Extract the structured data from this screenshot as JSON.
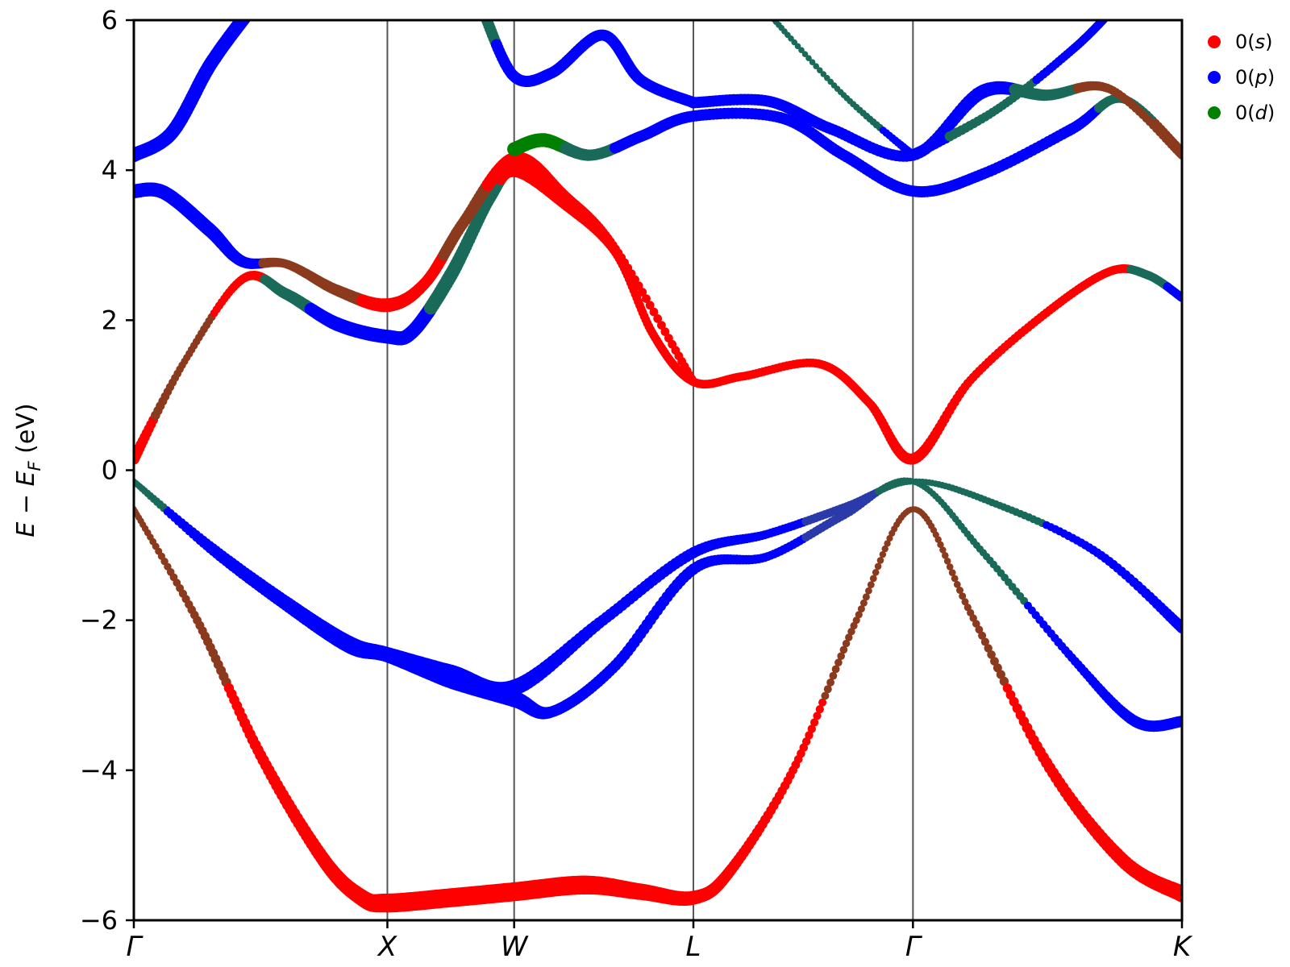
{
  "chart_data": {
    "type": "scatter",
    "title": "",
    "xlabel": "",
    "ylabel": "E − E_F (eV)",
    "ylabel_parts": {
      "main": "E − E",
      "sub": "F",
      "unit": " (eV)"
    },
    "ylim": [
      -6,
      6
    ],
    "yticks": [
      -6,
      -4,
      -2,
      0,
      2,
      4,
      6
    ],
    "ytick_labels": [
      "−6",
      "−4",
      "−2",
      "0",
      "2",
      "4",
      "6"
    ],
    "xlim": [
      0,
      4.134
    ],
    "kpoints": [
      {
        "label": "Γ",
        "x": 0
      },
      {
        "label": "X",
        "x": 1.0
      },
      {
        "label": "W",
        "x": 1.5
      },
      {
        "label": "L",
        "x": 2.207
      },
      {
        "label": "Γ",
        "x": 3.073
      },
      {
        "label": "K",
        "x": 4.134
      }
    ],
    "legend": {
      "placement": "top-right, outside",
      "entries": [
        {
          "label": "0(s)",
          "main": "0(",
          "ital": "s",
          "close": ")",
          "color": "#ff0000"
        },
        {
          "label": "0(p)",
          "main": "0(",
          "ital": "p",
          "close": ")",
          "color": "#0000ff"
        },
        {
          "label": "0(d)",
          "main": "0(",
          "ital": "d",
          "close": ")",
          "color": "#008000"
        }
      ]
    },
    "colors": {
      "s": "#ff0000",
      "p": "#0000ff",
      "d": "#008000",
      "mix_sd": "#8b3a1e",
      "mix_pd": "#1a6a5a",
      "mix_pdark": "#2a3aaa"
    },
    "bands": [
      {
        "name": "band-1",
        "points": [
          {
            "x": 0,
            "y": -0.52,
            "c": "mix_sd",
            "w": 1
          },
          {
            "x": 0.25,
            "y": -2.0,
            "c": "mix_sd",
            "w": 2
          },
          {
            "x": 0.5,
            "y": -3.8,
            "c": "s",
            "w": 3
          },
          {
            "x": 0.75,
            "y": -5.2,
            "c": "s",
            "w": 4
          },
          {
            "x": 0.9,
            "y": -5.7,
            "c": "s",
            "w": 5
          },
          {
            "x": 1.0,
            "y": -5.77,
            "c": "s",
            "w": 6
          },
          {
            "x": 1.25,
            "y": -5.7,
            "c": "s",
            "w": 6
          },
          {
            "x": 1.5,
            "y": -5.62,
            "c": "s",
            "w": 6
          },
          {
            "x": 1.78,
            "y": -5.53,
            "c": "s",
            "w": 6
          },
          {
            "x": 2.0,
            "y": -5.62,
            "c": "s",
            "w": 5
          },
          {
            "x": 2.207,
            "y": -5.7,
            "c": "s",
            "w": 4
          },
          {
            "x": 2.35,
            "y": -5.35,
            "c": "s",
            "w": 3
          },
          {
            "x": 2.6,
            "y": -4.0,
            "c": "s",
            "w": 2
          },
          {
            "x": 2.85,
            "y": -2.0,
            "c": "mix_sd",
            "w": 1.5
          },
          {
            "x": 3.073,
            "y": -0.52,
            "c": "mix_sd",
            "w": 1
          },
          {
            "x": 3.3,
            "y": -1.9,
            "c": "mix_sd",
            "w": 1.5
          },
          {
            "x": 3.6,
            "y": -3.9,
            "c": "s",
            "w": 3
          },
          {
            "x": 3.9,
            "y": -5.2,
            "c": "s",
            "w": 4
          },
          {
            "x": 4.134,
            "y": -5.65,
            "c": "s",
            "w": 5
          }
        ]
      },
      {
        "name": "band-2",
        "points": [
          {
            "x": 0,
            "y": -0.15,
            "c": "mix_pd",
            "w": 1
          },
          {
            "x": 0.3,
            "y": -1.0,
            "c": "p",
            "w": 2
          },
          {
            "x": 0.6,
            "y": -1.75,
            "c": "p",
            "w": 3
          },
          {
            "x": 0.85,
            "y": -2.3,
            "c": "p",
            "w": 4
          },
          {
            "x": 1.0,
            "y": -2.45,
            "c": "p",
            "w": 4
          },
          {
            "x": 1.25,
            "y": -2.7,
            "c": "p",
            "w": 5
          },
          {
            "x": 1.5,
            "y": -2.9,
            "c": "p",
            "w": 5
          },
          {
            "x": 1.85,
            "y": -2.0,
            "c": "p",
            "w": 3
          },
          {
            "x": 2.207,
            "y": -1.1,
            "c": "p",
            "w": 3
          },
          {
            "x": 2.5,
            "y": -0.85,
            "c": "p",
            "w": 2
          },
          {
            "x": 2.8,
            "y": -0.5,
            "c": "mix_pdark",
            "w": 2
          },
          {
            "x": 3.073,
            "y": -0.15,
            "c": "mix_pd",
            "w": 1
          },
          {
            "x": 3.4,
            "y": -0.45,
            "c": "mix_pd",
            "w": 1.5
          },
          {
            "x": 3.8,
            "y": -1.1,
            "c": "p",
            "w": 2
          },
          {
            "x": 4.134,
            "y": -2.1,
            "c": "p",
            "w": 3
          }
        ]
      },
      {
        "name": "band-3",
        "points": [
          {
            "x": 0,
            "y": -0.15,
            "c": "mix_pd",
            "w": 1
          },
          {
            "x": 0.3,
            "y": -1.05,
            "c": "p",
            "w": 2
          },
          {
            "x": 0.6,
            "y": -1.8,
            "c": "p",
            "w": 3
          },
          {
            "x": 0.85,
            "y": -2.35,
            "c": "p",
            "w": 4
          },
          {
            "x": 1.0,
            "y": -2.47,
            "c": "p",
            "w": 4
          },
          {
            "x": 1.25,
            "y": -2.8,
            "c": "p",
            "w": 5
          },
          {
            "x": 1.5,
            "y": -3.05,
            "c": "p",
            "w": 5
          },
          {
            "x": 1.65,
            "y": -3.22,
            "c": "p",
            "w": 3
          },
          {
            "x": 1.9,
            "y": -2.6,
            "c": "p",
            "w": 3
          },
          {
            "x": 2.207,
            "y": -1.32,
            "c": "p",
            "w": 3
          },
          {
            "x": 2.5,
            "y": -1.15,
            "c": "p",
            "w": 2
          },
          {
            "x": 2.8,
            "y": -0.6,
            "c": "mix_pdark",
            "w": 2
          },
          {
            "x": 3.073,
            "y": -0.15,
            "c": "mix_pd",
            "w": 1
          },
          {
            "x": 3.35,
            "y": -1.1,
            "c": "mix_pd",
            "w": 1.5
          },
          {
            "x": 3.7,
            "y": -2.5,
            "c": "p",
            "w": 2
          },
          {
            "x": 3.95,
            "y": -3.35,
            "c": "p",
            "w": 3
          },
          {
            "x": 4.134,
            "y": -3.35,
            "c": "p",
            "w": 3
          }
        ]
      },
      {
        "name": "band-4",
        "points": [
          {
            "x": 0,
            "y": 0.15,
            "c": "s",
            "w": 3
          },
          {
            "x": 0.2,
            "y": 1.45,
            "c": "mix_sd",
            "w": 1.5
          },
          {
            "x": 0.43,
            "y": 2.55,
            "c": "s",
            "w": 2
          },
          {
            "x": 0.6,
            "y": 2.35,
            "c": "mix_pd",
            "w": 3
          },
          {
            "x": 0.8,
            "y": 1.95,
            "c": "p",
            "w": 4
          },
          {
            "x": 1.0,
            "y": 1.78,
            "c": "p",
            "w": 4
          },
          {
            "x": 1.1,
            "y": 1.85,
            "c": "p",
            "w": 4
          },
          {
            "x": 1.25,
            "y": 2.6,
            "c": "mix_pd",
            "w": 4
          },
          {
            "x": 1.4,
            "y": 3.6,
            "c": "mix_pd",
            "w": 3
          },
          {
            "x": 1.5,
            "y": 4.0,
            "c": "s",
            "w": 4
          },
          {
            "x": 1.7,
            "y": 3.55,
            "c": "s",
            "w": 3
          },
          {
            "x": 1.9,
            "y": 2.9,
            "c": "s",
            "w": 2
          },
          {
            "x": 2.05,
            "y": 1.8,
            "c": "s",
            "w": 2
          },
          {
            "x": 2.207,
            "y": 1.18,
            "c": "s",
            "w": 2
          },
          {
            "x": 2.4,
            "y": 1.25,
            "c": "s",
            "w": 2
          },
          {
            "x": 2.7,
            "y": 1.42,
            "c": "s",
            "w": 2
          },
          {
            "x": 2.9,
            "y": 0.9,
            "c": "s",
            "w": 2
          },
          {
            "x": 3.073,
            "y": 0.15,
            "c": "s",
            "w": 3
          },
          {
            "x": 3.3,
            "y": 1.2,
            "c": "s",
            "w": 2
          },
          {
            "x": 3.6,
            "y": 2.1,
            "c": "s",
            "w": 2
          },
          {
            "x": 3.85,
            "y": 2.65,
            "c": "s",
            "w": 2
          },
          {
            "x": 4.0,
            "y": 2.6,
            "c": "mix_pd",
            "w": 2
          },
          {
            "x": 4.134,
            "y": 2.3,
            "c": "p",
            "w": 2
          }
        ]
      },
      {
        "name": "band-5",
        "points": [
          {
            "x": 0,
            "y": 3.72,
            "c": "p",
            "w": 4
          },
          {
            "x": 0.12,
            "y": 3.7,
            "c": "p",
            "w": 4
          },
          {
            "x": 0.3,
            "y": 3.2,
            "c": "p",
            "w": 4
          },
          {
            "x": 0.43,
            "y": 2.78,
            "c": "p",
            "w": 3
          },
          {
            "x": 0.6,
            "y": 2.75,
            "c": "mix_sd",
            "w": 2
          },
          {
            "x": 0.8,
            "y": 2.4,
            "c": "mix_sd",
            "w": 3
          },
          {
            "x": 1.0,
            "y": 2.2,
            "c": "s",
            "w": 4
          },
          {
            "x": 1.15,
            "y": 2.5,
            "c": "s",
            "w": 3
          },
          {
            "x": 1.3,
            "y": 3.3,
            "c": "mix_sd",
            "w": 3
          },
          {
            "x": 1.5,
            "y": 4.15,
            "c": "s",
            "w": 4
          },
          {
            "x": 1.7,
            "y": 3.65,
            "c": "s",
            "w": 3
          },
          {
            "x": 1.9,
            "y": 2.95,
            "c": "s",
            "w": 2
          },
          {
            "x": 2.207,
            "y": 1.18,
            "c": "s",
            "w": 2
          }
        ]
      },
      {
        "name": "band-6",
        "points": [
          {
            "x": 1.5,
            "y": 4.28,
            "c": "d",
            "w": 4
          },
          {
            "x": 1.62,
            "y": 4.4,
            "c": "d",
            "w": 4
          },
          {
            "x": 1.8,
            "y": 4.2,
            "c": "mix_pd",
            "w": 3
          },
          {
            "x": 2.0,
            "y": 4.45,
            "c": "p",
            "w": 3
          },
          {
            "x": 2.207,
            "y": 4.72,
            "c": "p",
            "w": 3
          },
          {
            "x": 2.55,
            "y": 4.7,
            "c": "p",
            "w": 3
          },
          {
            "x": 2.8,
            "y": 4.2,
            "c": "p",
            "w": 3
          },
          {
            "x": 3.073,
            "y": 3.72,
            "c": "p",
            "w": 3
          },
          {
            "x": 3.35,
            "y": 3.95,
            "c": "p",
            "w": 3
          },
          {
            "x": 3.7,
            "y": 4.55,
            "c": "p",
            "w": 3
          },
          {
            "x": 3.9,
            "y": 4.95,
            "c": "mix_pd",
            "w": 2
          },
          {
            "x": 4.134,
            "y": 4.25,
            "c": "mix_sd",
            "w": 2
          }
        ]
      },
      {
        "name": "band-7",
        "points": [
          {
            "x": 2.207,
            "y": 4.9,
            "c": "p",
            "w": 3
          },
          {
            "x": 2.5,
            "y": 4.92,
            "c": "p",
            "w": 3
          },
          {
            "x": 2.75,
            "y": 4.55,
            "c": "p",
            "w": 3
          },
          {
            "x": 3.073,
            "y": 4.2,
            "c": "p",
            "w": 3
          },
          {
            "x": 3.35,
            "y": 5.05,
            "c": "p",
            "w": 4
          },
          {
            "x": 3.6,
            "y": 5.0,
            "c": "mix_pd",
            "w": 3
          },
          {
            "x": 3.85,
            "y": 5.08,
            "c": "mix_sd",
            "w": 2
          },
          {
            "x": 4.134,
            "y": 4.2,
            "c": "mix_sd",
            "w": 2
          }
        ]
      },
      {
        "name": "band-8",
        "points": [
          {
            "x": 3.073,
            "y": 4.2,
            "c": "p",
            "w": 3
          },
          {
            "x": 3.4,
            "y": 4.8,
            "c": "mix_pd",
            "w": 2
          },
          {
            "x": 3.7,
            "y": 5.6,
            "c": "p",
            "w": 2
          },
          {
            "x": 3.85,
            "y": 6.1,
            "c": "p",
            "w": 2
          }
        ]
      },
      {
        "name": "band-9",
        "points": [
          {
            "x": 0,
            "y": 4.2,
            "c": "p",
            "w": 4
          },
          {
            "x": 0.15,
            "y": 4.5,
            "c": "p",
            "w": 4
          },
          {
            "x": 0.3,
            "y": 5.4,
            "c": "p",
            "w": 4
          },
          {
            "x": 0.45,
            "y": 6.1,
            "c": "p",
            "w": 4
          }
        ]
      },
      {
        "name": "band-10",
        "points": [
          {
            "x": 1.38,
            "y": 6.1,
            "c": "mix_pd",
            "w": 3
          },
          {
            "x": 1.5,
            "y": 5.25,
            "c": "p",
            "w": 3
          },
          {
            "x": 1.65,
            "y": 5.3,
            "c": "p",
            "w": 3
          },
          {
            "x": 1.85,
            "y": 5.8,
            "c": "p",
            "w": 3
          },
          {
            "x": 2.0,
            "y": 5.2,
            "c": "p",
            "w": 3
          },
          {
            "x": 2.207,
            "y": 4.9,
            "c": "p",
            "w": 3
          }
        ]
      },
      {
        "name": "band-11",
        "points": [
          {
            "x": 2.5,
            "y": 6.1,
            "c": "mix_pd",
            "w": 1
          },
          {
            "x": 2.8,
            "y": 5.0,
            "c": "mix_pd",
            "w": 1
          },
          {
            "x": 3.073,
            "y": 4.2,
            "c": "p",
            "w": 2
          }
        ]
      }
    ]
  }
}
